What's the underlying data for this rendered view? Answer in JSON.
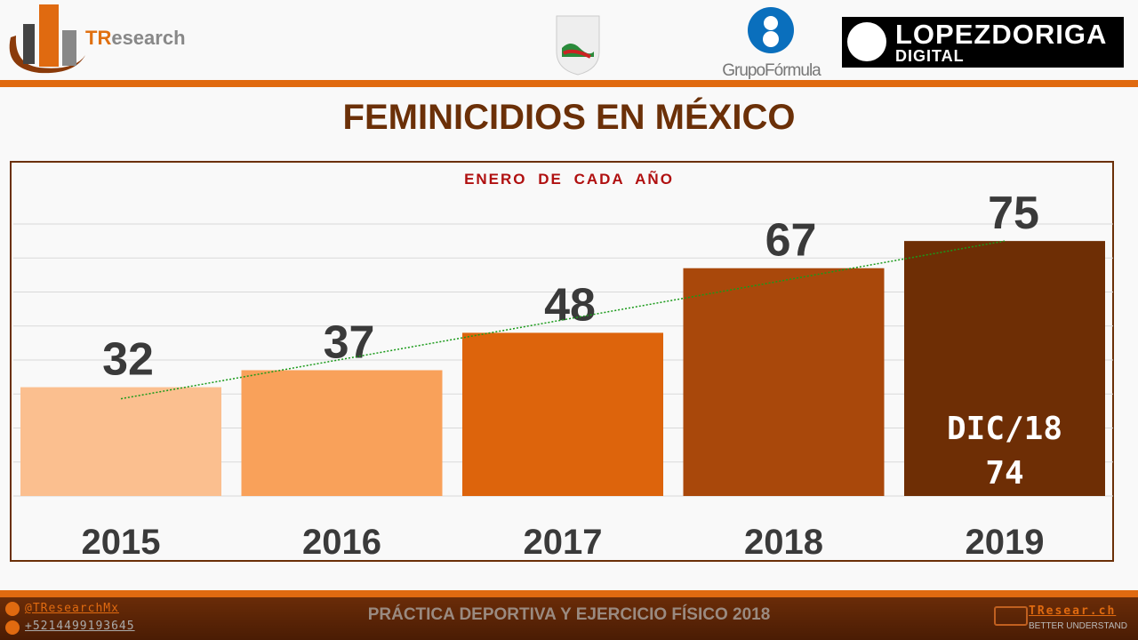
{
  "header": {
    "logo_brand_t": "TR",
    "logo_brand_rest": "esearch",
    "partner_1": "GrupoFórmula",
    "partner_2_line1": "LOPEZDORIGA",
    "partner_2_line2": "DIGITAL"
  },
  "title": "FEMINICIDIOS EN MÉXICO",
  "chart_data": {
    "type": "bar",
    "title": "FEMINICIDIOS EN MÉXICO",
    "subtitle": "ENERO DE CADA AÑO",
    "categories": [
      "2015",
      "2016",
      "2017",
      "2018",
      "2019"
    ],
    "values": [
      32,
      37,
      48,
      67,
      75
    ],
    "ylim": [
      0,
      80
    ],
    "grid": true,
    "trendline": "linear",
    "bar_colors": [
      "#fbbf8f",
      "#f9a15a",
      "#dd640c",
      "#a9480b",
      "#6e2e05"
    ],
    "annotation": {
      "category": "2019",
      "line1": "DIC/18",
      "line2": "74"
    }
  },
  "footer": {
    "twitter": "@TResearchMx",
    "phone": "+5214499193645",
    "center": "PRÁCTICA DEPORTIVA Y EJERCICIO FÍSICO 2018",
    "site": "TResear.ch",
    "tagline": "BETTER UNDERSTAND"
  },
  "colors": {
    "accent": "#e06a10",
    "brown": "#6b3008"
  }
}
